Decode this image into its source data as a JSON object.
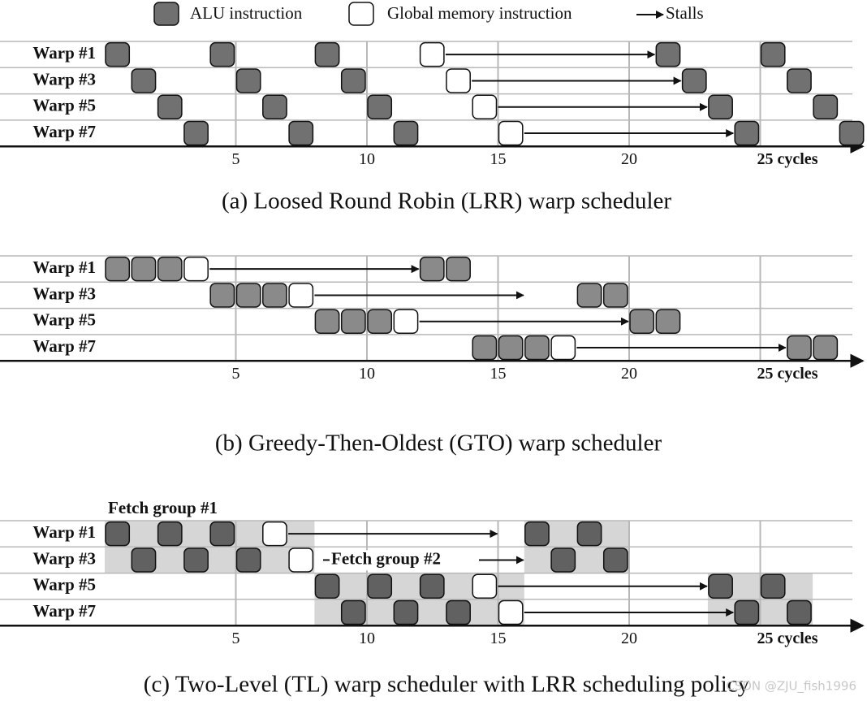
{
  "legend": {
    "alu": "ALU instruction",
    "memory": "Global memory instruction",
    "stall": "Stalls"
  },
  "panels": [
    {
      "caption": "(a) Loosed Round Robin (LRR) warp scheduler",
      "rows": [
        "Warp #1",
        "Warp #3",
        "Warp #5",
        "Warp #7"
      ],
      "ticks": [
        "5",
        "10",
        "15",
        "20",
        "25 cycles"
      ]
    },
    {
      "caption": "(b) Greedy-Then-Oldest (GTO) warp scheduler",
      "rows": [
        "Warp #1",
        "Warp #3",
        "Warp #5",
        "Warp #7"
      ],
      "ticks": [
        "5",
        "10",
        "15",
        "20",
        "25 cycles"
      ]
    },
    {
      "caption": "(c) Two-Level (TL) warp scheduler with LRR scheduling policy",
      "rows": [
        "Warp #1",
        "Warp #3",
        "Warp #5",
        "Warp #7"
      ],
      "ticks": [
        "5",
        "10",
        "15",
        "20",
        "25 cycles"
      ],
      "fetch_groups": [
        "Fetch group #1",
        "Fetch group #2"
      ]
    }
  ],
  "watermark": "CSDN @ZJU_fish1996"
}
